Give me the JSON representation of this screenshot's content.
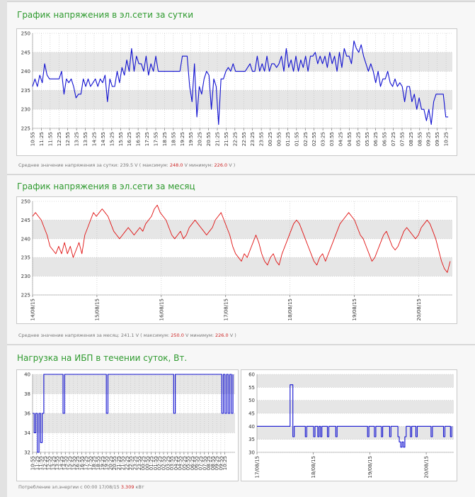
{
  "panels": [
    {
      "title": "График напряжения в эл.сети за сутки",
      "stats": {
        "prefix": "Среднее значение напряжения за сутки: 239.5 V ( максимум:",
        "max": "248.0",
        "mid": "V минимум:",
        "min": "226.0",
        "suffix": "V )"
      }
    },
    {
      "title": "График напряжения в эл.сети за месяц",
      "stats": {
        "prefix": "Среднее значение напряжения за месяц: 241.1 V ( максимум:",
        "max": "250.0",
        "mid": "V минимум:",
        "min": "226.0",
        "suffix": "V )"
      }
    },
    {
      "title": "Нагрузка на ИБП в течении суток, Вт.",
      "stats": {
        "prefix": "Потребление эл.энергии с 00:00 17/08/15",
        "max": "3.309",
        "mid": "",
        "min": "",
        "suffix": "кВт"
      }
    }
  ],
  "colors": {
    "blue": "#1010d0",
    "red": "#e01010",
    "band": "#e6e6e6",
    "grid": "#bdbdbd"
  },
  "chart_data": [
    {
      "type": "line",
      "title": "График напряжения в эл.сети за сутки",
      "ylim": [
        225,
        250
      ],
      "yticks": [
        225,
        230,
        235,
        240,
        245,
        250
      ],
      "xticks": [
        "10:55",
        "11:25",
        "11:55",
        "12:25",
        "12:55",
        "13:25",
        "13:55",
        "14:25",
        "14:55",
        "15:25",
        "15:55",
        "16:25",
        "16:55",
        "17:25",
        "17:55",
        "18:25",
        "18:55",
        "19:25",
        "19:55",
        "20:25",
        "20:55",
        "21:25",
        "21:55",
        "22:25",
        "22:55",
        "23:25",
        "23:55",
        "00:25",
        "00:55",
        "01:25",
        "01:55",
        "02:25",
        "02:55",
        "03:25",
        "03:55",
        "04:25",
        "04:55",
        "05:25",
        "05:55",
        "06:25",
        "06:55",
        "07:25",
        "07:55",
        "08:25",
        "08:55",
        "09:25",
        "09:55",
        "10:25"
      ],
      "series": [
        {
          "values": [
            236,
            238,
            236,
            239,
            237,
            242,
            239,
            238,
            238,
            238,
            238,
            238,
            240,
            234,
            238,
            237,
            238,
            236,
            233,
            234,
            234,
            238,
            236,
            238,
            236,
            237,
            238,
            236,
            238,
            237,
            239,
            232,
            238,
            236,
            236,
            240,
            237,
            241,
            239,
            243,
            240,
            246,
            240,
            244,
            242,
            242,
            240,
            244,
            239,
            242,
            240,
            244,
            240,
            240,
            240,
            240,
            240,
            240,
            240,
            240,
            240,
            240,
            244,
            244,
            244,
            236,
            232,
            242,
            228,
            236,
            234,
            238,
            240,
            239,
            230,
            238,
            236,
            226,
            238,
            238,
            240,
            241,
            240,
            242,
            240,
            240,
            240,
            240,
            240,
            241,
            242,
            240,
            240,
            244,
            240,
            242,
            240,
            244,
            240,
            242,
            242,
            241,
            242,
            244,
            240,
            246,
            241,
            243,
            240,
            244,
            240,
            243,
            241,
            244,
            240,
            244,
            244,
            245,
            242,
            244,
            242,
            244,
            241,
            245,
            242,
            244,
            240,
            245,
            241,
            246,
            244,
            244,
            242,
            248,
            246,
            245,
            247,
            244,
            242,
            240,
            242,
            240,
            237,
            240,
            236,
            238,
            238,
            240,
            237,
            236,
            238,
            236,
            237,
            236,
            232,
            236,
            236,
            232,
            234,
            230,
            233,
            230,
            230,
            227,
            230,
            226,
            232,
            234,
            234,
            234,
            234,
            228,
            228
          ]
        }
      ]
    },
    {
      "type": "line",
      "title": "График напряжения в эл.сети за месяц",
      "ylim": [
        225,
        250
      ],
      "yticks": [
        225,
        230,
        235,
        240,
        245,
        250
      ],
      "xticks": [
        "14/08/15",
        "15/08/15",
        "16/08/15",
        "17/08/15",
        "18/08/15",
        "19/08/15",
        "20/08/15"
      ],
      "series": [
        {
          "values": [
            246,
            247,
            246,
            245,
            243,
            241,
            238,
            237,
            236,
            238,
            236,
            239,
            236,
            238,
            235,
            237,
            239,
            236,
            241,
            243,
            245,
            247,
            246,
            247,
            248,
            247,
            246,
            244,
            242,
            241,
            240,
            241,
            242,
            243,
            242,
            241,
            242,
            243,
            242,
            244,
            245,
            246,
            248,
            249,
            247,
            246,
            245,
            243,
            241,
            240,
            241,
            242,
            240,
            241,
            243,
            244,
            245,
            244,
            243,
            242,
            241,
            242,
            243,
            245,
            246,
            247,
            245,
            243,
            241,
            238,
            236,
            235,
            234,
            236,
            235,
            237,
            239,
            241,
            239,
            236,
            234,
            233,
            235,
            236,
            234,
            233,
            236,
            238,
            240,
            242,
            244,
            245,
            244,
            242,
            240,
            238,
            236,
            234,
            233,
            235,
            236,
            234,
            236,
            238,
            240,
            242,
            244,
            245,
            246,
            247,
            246,
            245,
            243,
            241,
            240,
            238,
            236,
            234,
            235,
            237,
            239,
            241,
            242,
            240,
            238,
            237,
            238,
            240,
            242,
            243,
            242,
            241,
            240,
            241,
            243,
            244,
            245,
            244,
            242,
            240,
            237,
            234,
            232,
            231,
            234
          ]
        }
      ]
    },
    {
      "type": "line",
      "title": "Нагрузка на ИБП в течении суток, Вт.",
      "ylim": [
        32,
        40
      ],
      "yticks": [
        32,
        34,
        36,
        38,
        40
      ],
      "xticks": [
        "10:55",
        "11:25",
        "11:55",
        "12:25",
        "12:55",
        "13:25",
        "13:55",
        "14:25",
        "14:55",
        "15:25",
        "15:55",
        "16:25",
        "16:55",
        "17:25",
        "17:55",
        "18:25",
        "18:55",
        "19:25",
        "19:55",
        "20:25",
        "20:55",
        "21:25",
        "21:55",
        "22:25",
        "22:55",
        "23:25",
        "23:55",
        "00:25",
        "00:55",
        "01:25",
        "01:55",
        "02:25",
        "02:55",
        "03:25",
        "03:55",
        "04:25",
        "04:55",
        "05:25",
        "05:55",
        "06:25",
        "06:55",
        "07:25",
        "07:55",
        "08:25",
        "08:55",
        "09:25",
        "09:55",
        "10:25"
      ],
      "series": [
        {
          "values": [
            36,
            34,
            36,
            32,
            36,
            33,
            36,
            40,
            40,
            40,
            40,
            40,
            40,
            40,
            40,
            40,
            40,
            40,
            40,
            36,
            40,
            40,
            40,
            40,
            40,
            40,
            40,
            40,
            40,
            40,
            40,
            40,
            40,
            40,
            40,
            40,
            40,
            40,
            40,
            40,
            40,
            40,
            40,
            40,
            40,
            40,
            36,
            40,
            40,
            40,
            40,
            40,
            40,
            40,
            40,
            40,
            40,
            40,
            40,
            40,
            40,
            40,
            40,
            40,
            40,
            40,
            40,
            40,
            40,
            40,
            40,
            40,
            40,
            40,
            40,
            40,
            40,
            40,
            40,
            40,
            40,
            40,
            40,
            40,
            40,
            40,
            40,
            40,
            36,
            40,
            40,
            40,
            40,
            40,
            40,
            40,
            40,
            40,
            40,
            40,
            40,
            40,
            40,
            40,
            40,
            40,
            40,
            40,
            40,
            40,
            40,
            40,
            40,
            40,
            40,
            40,
            40,
            40,
            36,
            40,
            36,
            40,
            36,
            40,
            36,
            40
          ]
        }
      ]
    },
    {
      "type": "line",
      "ylim": [
        30,
        60
      ],
      "yticks": [
        30,
        35,
        40,
        45,
        50,
        55,
        60
      ],
      "xticks": [
        "17/08/15",
        "18/08/15",
        "19/08/15",
        "20/08/15"
      ],
      "series": [
        {
          "values": [
            40,
            40,
            40,
            40,
            40,
            40,
            40,
            40,
            40,
            40,
            40,
            40,
            40,
            40,
            40,
            40,
            40,
            40,
            40,
            40,
            40,
            40,
            40,
            40,
            56,
            56,
            36,
            40,
            40,
            40,
            40,
            40,
            40,
            40,
            40,
            36,
            40,
            40,
            40,
            40,
            40,
            36,
            40,
            40,
            36,
            40,
            36,
            40,
            40,
            40,
            40,
            36,
            40,
            40,
            40,
            40,
            40,
            36,
            40,
            40,
            40,
            40,
            40,
            40,
            40,
            40,
            40,
            40,
            40,
            40,
            40,
            40,
            40,
            40,
            40,
            40,
            40,
            40,
            40,
            40,
            36,
            40,
            40,
            40,
            40,
            36,
            40,
            40,
            40,
            40,
            36,
            40,
            40,
            40,
            40,
            40,
            36,
            40,
            40,
            40,
            40,
            40,
            36,
            34,
            32,
            34,
            32,
            36,
            40,
            40,
            40,
            36,
            40,
            40,
            40,
            36,
            40,
            40,
            40,
            40,
            40,
            40,
            40,
            40,
            40,
            40,
            36,
            40,
            40,
            40,
            40,
            40,
            40,
            40,
            40,
            36,
            40,
            40,
            40,
            40,
            36,
            40
          ]
        }
      ]
    }
  ]
}
